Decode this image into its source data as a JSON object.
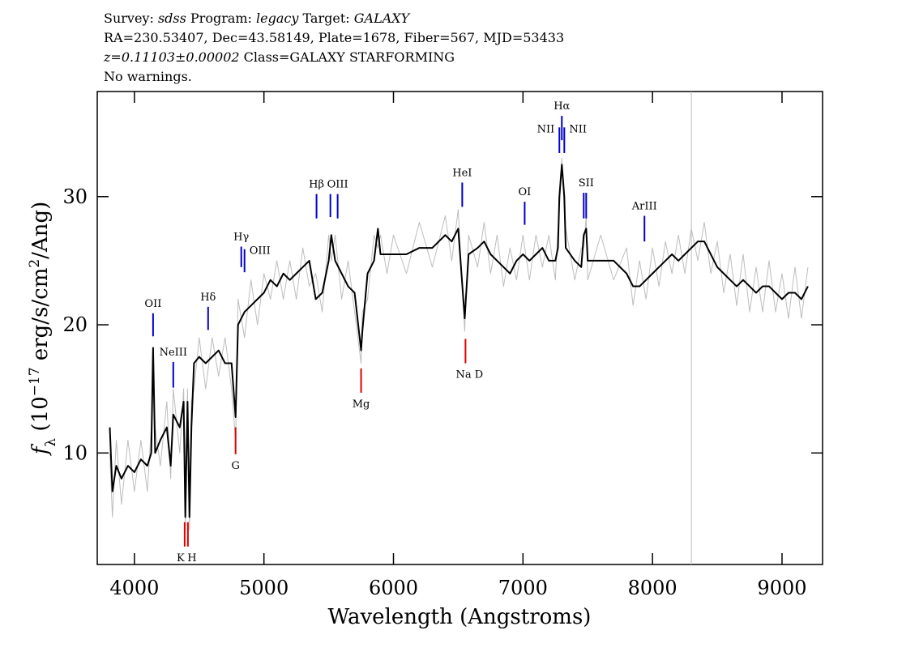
{
  "chart_data": {
    "type": "line",
    "header": [
      [
        {
          "text": "Survey: ",
          "italic": false
        },
        {
          "text": "sdss",
          "italic": true
        },
        {
          "text": " Program: ",
          "italic": false
        },
        {
          "text": "legacy",
          "italic": true
        },
        {
          "text": " Target: ",
          "italic": false
        },
        {
          "text": "GALAXY",
          "italic": true
        }
      ],
      [
        {
          "text": "RA=230.53407, Dec=43.58149, Plate=1678, Fiber=567, MJD=53433",
          "italic": false
        }
      ],
      [
        {
          "text": "z=0.11103±0.00002",
          "italic": true
        },
        {
          "text": " Class=GALAXY STARFORMING",
          "italic": false
        }
      ],
      [
        {
          "text": "No warnings.",
          "italic": false
        }
      ]
    ],
    "xlabel": "Wavelength (Angstroms)",
    "ylabel_parts": [
      {
        "text": "f",
        "shift": "none"
      },
      {
        "text": "λ",
        "shift": "sub"
      },
      {
        "text": " (10",
        "shift": "none"
      },
      {
        "text": "−17",
        "shift": "super"
      },
      {
        "text": " erg/s/cm",
        "shift": "none"
      },
      {
        "text": "2",
        "shift": "super"
      },
      {
        "text": "/Ang)",
        "shift": "none"
      }
    ],
    "xlim": [
      3713,
      9313
    ],
    "ylim": [
      1.3,
      38.2
    ],
    "xticks": [
      4000,
      5000,
      6000,
      7000,
      8000,
      9000
    ],
    "yticks": [
      10,
      20,
      30
    ],
    "reference_line_x": 8300,
    "x": [
      3810,
      3830,
      3860,
      3900,
      3950,
      4000,
      4050,
      4100,
      4130,
      4144,
      4160,
      4200,
      4250,
      4280,
      4300,
      4350,
      4380,
      4393,
      4410,
      4425,
      4440,
      4460,
      4500,
      4550,
      4600,
      4650,
      4700,
      4750,
      4781,
      4800,
      4850,
      4900,
      4950,
      5000,
      5050,
      5100,
      5150,
      5200,
      5250,
      5300,
      5350,
      5400,
      5450,
      5500,
      5520,
      5550,
      5600,
      5650,
      5700,
      5750,
      5760,
      5800,
      5850,
      5880,
      5900,
      5950,
      6000,
      6100,
      6200,
      6300,
      6400,
      6450,
      6500,
      6550,
      6580,
      6650,
      6700,
      6750,
      6800,
      6850,
      6900,
      6950,
      7000,
      7050,
      7100,
      7150,
      7200,
      7250,
      7270,
      7281,
      7300,
      7319,
      7330,
      7400,
      7450,
      7469,
      7488,
      7500,
      7600,
      7700,
      7800,
      7850,
      7900,
      7950,
      8000,
      8050,
      8100,
      8150,
      8200,
      8250,
      8300,
      8350,
      8400,
      8450,
      8500,
      8550,
      8600,
      8650,
      8700,
      8750,
      8800,
      8850,
      8900,
      8950,
      9000,
      9050,
      9100,
      9150,
      9200
    ],
    "series": [
      {
        "color": "#bdbdbd",
        "width": 1,
        "values": [
          10,
          5,
          11,
          6,
          11,
          7,
          11,
          7,
          12,
          17,
          12,
          9,
          14,
          8,
          15,
          10,
          15,
          4,
          15,
          4,
          14,
          15,
          19,
          15,
          19,
          16,
          19,
          15,
          11,
          22,
          19,
          23.5,
          20,
          24,
          22,
          25,
          22,
          25,
          22,
          26,
          23,
          24,
          21,
          27,
          25,
          27,
          22,
          25,
          21,
          17,
          21,
          22,
          27,
          26,
          27,
          24,
          27,
          24,
          28,
          24.5,
          28.5,
          25,
          29,
          19.5,
          27,
          24.5,
          28,
          24,
          27,
          23,
          26,
          23.5,
          27,
          23.5,
          27,
          24.5,
          27,
          23.5,
          27.5,
          29,
          33,
          29,
          27.5,
          23.5,
          26,
          26,
          28.5,
          23.5,
          27,
          23.5,
          26,
          21.5,
          25,
          22,
          26,
          23,
          26.5,
          24,
          27,
          24,
          27.5,
          25,
          28,
          24,
          26.5,
          22.5,
          25.5,
          21.5,
          25.5,
          21,
          24.5,
          21,
          25,
          21,
          24,
          20.5,
          24.5,
          20.5,
          24.5
        ]
      },
      {
        "color": "#000000",
        "width": 2,
        "values": [
          12,
          7,
          9,
          8,
          9,
          8.5,
          9.5,
          9,
          10,
          18.2,
          10,
          11,
          12,
          9,
          13,
          12,
          14,
          5,
          14,
          5,
          12,
          17,
          17.5,
          17,
          17.5,
          18,
          17,
          17,
          12.8,
          20,
          21,
          21.5,
          22,
          22.5,
          23.5,
          23,
          24,
          23.5,
          24,
          24.5,
          25,
          22,
          22.5,
          25,
          27,
          25,
          24,
          23,
          22.5,
          18,
          19.5,
          24,
          25,
          27.5,
          25.5,
          25.5,
          25.5,
          25.5,
          26,
          26,
          27,
          26.5,
          27.5,
          20.5,
          25.5,
          26,
          26.5,
          25.5,
          25,
          24.5,
          24,
          25,
          25.5,
          25,
          25.5,
          26,
          25,
          25,
          26,
          30,
          32.5,
          30,
          26,
          25,
          24.5,
          27,
          27.5,
          25,
          25,
          25,
          24,
          23,
          23,
          23.5,
          24,
          24.5,
          25,
          25.5,
          25,
          25.5,
          26,
          26.5,
          26.5,
          25.5,
          24.5,
          24,
          23.5,
          23,
          23.5,
          23,
          22.5,
          23,
          23,
          22.5,
          22,
          22.5,
          22.5,
          22,
          23
        ]
      }
    ],
    "lines": [
      {
        "label": "OII",
        "wavelength": 4144,
        "flux": [
          19.1,
          20.9
        ],
        "color": "#0000cc"
      },
      {
        "label": "NeIII",
        "wavelength": 4300,
        "flux": [
          15.1,
          17.1
        ],
        "color": "#0000cc"
      },
      {
        "label": "Hδ",
        "wavelength": 4569,
        "flux": [
          19.6,
          21.4
        ],
        "color": "#0000cc"
      },
      {
        "label": "Hγ",
        "wavelength": 4825,
        "flux": [
          24.5,
          26.1
        ],
        "color": "#0000cc"
      },
      {
        "label": "OIII",
        "wavelength": 4850,
        "flux": [
          24.1,
          25.9
        ],
        "color": "#0000cc"
      },
      {
        "label": "Hβ",
        "wavelength": 5406,
        "flux": [
          28.3,
          30.2
        ],
        "color": "#0000cc"
      },
      {
        "label": null,
        "wavelength": 5513,
        "flux": [
          28.4,
          30.2
        ],
        "color": "#0000cc"
      },
      {
        "label": "OIII",
        "wavelength": 5569,
        "flux": [
          28.3,
          30.2
        ],
        "color": "#0000cc"
      },
      {
        "label": "HeI",
        "wavelength": 6531,
        "flux": [
          29.2,
          31.1
        ],
        "color": "#0000cc"
      },
      {
        "label": "OI",
        "wavelength": 7013,
        "flux": [
          27.8,
          29.6
        ],
        "color": "#0000cc"
      },
      {
        "label": "NII",
        "wavelength": 7281,
        "flux": [
          33.4,
          35.4
        ],
        "color": "#0000cc"
      },
      {
        "label": "Hα",
        "wavelength": 7300,
        "flux": [
          34.4,
          36.3
        ],
        "color": "#0000cc"
      },
      {
        "label": "NII",
        "wavelength": 7319,
        "flux": [
          33.4,
          35.4
        ],
        "color": "#0000cc"
      },
      {
        "label": null,
        "wavelength": 7469,
        "flux": [
          28.3,
          30.3
        ],
        "color": "#0000cc"
      },
      {
        "label": "SII",
        "wavelength": 7488,
        "flux": [
          28.3,
          30.3
        ],
        "color": "#0000cc"
      },
      {
        "label": "ArIII",
        "wavelength": 7938,
        "flux": [
          26.5,
          28.5
        ],
        "color": "#0000cc"
      },
      {
        "label": "K",
        "wavelength": 4388,
        "flux": [
          2.7,
          4.6
        ],
        "color": "#dd0000"
      },
      {
        "label": "H",
        "wavelength": 4413,
        "flux": [
          2.7,
          4.6
        ],
        "color": "#dd0000"
      },
      {
        "label": "G",
        "wavelength": 4781,
        "flux": [
          9.9,
          12.0
        ],
        "color": "#dd0000"
      },
      {
        "label": "Mg",
        "wavelength": 5750,
        "flux": [
          14.7,
          16.6
        ],
        "color": "#dd0000"
      },
      {
        "label": "Na D",
        "wavelength": 6556,
        "flux": [
          17.0,
          18.9
        ],
        "color": "#dd0000"
      }
    ]
  }
}
